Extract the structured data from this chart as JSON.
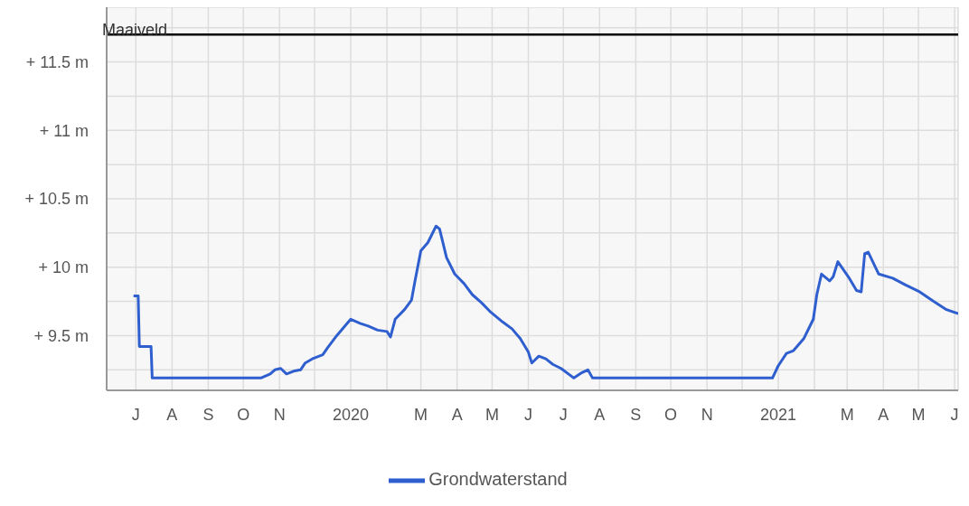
{
  "chart_data": {
    "type": "line",
    "x": [
      "2019-06-29",
      "2019-07-03",
      "2019-07-04",
      "2019-07-14",
      "2019-07-15",
      "2019-10-16",
      "2019-10-24",
      "2019-10-28",
      "2019-11-02",
      "2019-11-07",
      "2019-11-13",
      "2019-11-19",
      "2019-11-23",
      "2019-11-29",
      "2019-12-08",
      "2019-12-12",
      "2019-12-20",
      "2019-12-28",
      "2020-01-01",
      "2020-01-09",
      "2020-01-16",
      "2020-01-24",
      "2020-02-01",
      "2020-02-04",
      "2020-02-08",
      "2020-02-16",
      "2020-02-22",
      "2020-02-25",
      "2020-03-01",
      "2020-03-07",
      "2020-03-14",
      "2020-03-17",
      "2020-03-23",
      "2020-03-30",
      "2020-04-07",
      "2020-04-14",
      "2020-04-22",
      "2020-04-30",
      "2020-05-10",
      "2020-05-18",
      "2020-05-25",
      "2020-06-01",
      "2020-06-04",
      "2020-06-10",
      "2020-06-16",
      "2020-06-22",
      "2020-06-29",
      "2020-07-10",
      "2020-07-17",
      "2020-07-22",
      "2020-07-26",
      "2020-08-25",
      "2020-11-09",
      "2020-12-27",
      "2021-01-01",
      "2021-01-08",
      "2021-01-14",
      "2021-01-23",
      "2021-01-31",
      "2021-02-03",
      "2021-02-07",
      "2021-02-14",
      "2021-02-17",
      "2021-02-21",
      "2021-03-02",
      "2021-03-09",
      "2021-03-13",
      "2021-03-16",
      "2021-03-19",
      "2021-03-28",
      "2021-04-09",
      "2021-04-20",
      "2021-05-02",
      "2021-05-14",
      "2021-05-25",
      "2021-06-04"
    ],
    "series": [
      {
        "name": "Grondwaterstand",
        "color": "#2f5fcf",
        "values": [
          9.79,
          9.79,
          9.42,
          9.42,
          9.19,
          9.19,
          9.22,
          9.25,
          9.26,
          9.22,
          9.24,
          9.25,
          9.3,
          9.33,
          9.36,
          9.41,
          9.5,
          9.58,
          9.62,
          9.59,
          9.57,
          9.54,
          9.53,
          9.49,
          9.62,
          9.69,
          9.76,
          9.9,
          10.12,
          10.18,
          10.3,
          10.28,
          10.07,
          9.95,
          9.88,
          9.8,
          9.74,
          9.67,
          9.6,
          9.55,
          9.48,
          9.38,
          9.3,
          9.35,
          9.33,
          9.29,
          9.26,
          9.19,
          9.23,
          9.25,
          9.19,
          9.19,
          9.19,
          9.19,
          9.28,
          9.37,
          9.39,
          9.48,
          9.62,
          9.8,
          9.95,
          9.9,
          9.93,
          10.04,
          9.93,
          9.83,
          9.82,
          10.1,
          10.11,
          9.95,
          9.92,
          9.87,
          9.82,
          9.75,
          9.69,
          9.66
        ]
      }
    ],
    "xlim": [
      "2019-06-06",
      "2021-06-04"
    ],
    "xticks": [
      {
        "value": "2019-07",
        "label": "J"
      },
      {
        "value": "2019-08",
        "label": "A"
      },
      {
        "value": "2019-09",
        "label": "S"
      },
      {
        "value": "2019-10",
        "label": "O"
      },
      {
        "value": "2019-11",
        "label": "N"
      },
      {
        "value": "2019-12",
        "label": null
      },
      {
        "value": "2020-01",
        "label": "2020"
      },
      {
        "value": "2020-02",
        "label": null
      },
      {
        "value": "2020-03",
        "label": "M"
      },
      {
        "value": "2020-04",
        "label": "A"
      },
      {
        "value": "2020-05",
        "label": "M"
      },
      {
        "value": "2020-06",
        "label": "J"
      },
      {
        "value": "2020-07",
        "label": "J"
      },
      {
        "value": "2020-08",
        "label": "A"
      },
      {
        "value": "2020-09",
        "label": "S"
      },
      {
        "value": "2020-10",
        "label": "O"
      },
      {
        "value": "2020-11",
        "label": "N"
      },
      {
        "value": "2020-12",
        "label": null
      },
      {
        "value": "2021-01",
        "label": "2021"
      },
      {
        "value": "2021-02",
        "label": null
      },
      {
        "value": "2021-03",
        "label": "M"
      },
      {
        "value": "2021-04",
        "label": "A"
      },
      {
        "value": "2021-05",
        "label": "M"
      },
      {
        "value": "2021-06",
        "label": "J"
      }
    ],
    "ylim": [
      9.1,
      11.9
    ],
    "yticks": [
      {
        "value": 9.25,
        "label": null
      },
      {
        "value": 9.5,
        "label": "+ 9.5 m"
      },
      {
        "value": 9.75,
        "label": null
      },
      {
        "value": 10,
        "label": "+ 10 m"
      },
      {
        "value": 10.25,
        "label": null
      },
      {
        "value": 10.5,
        "label": "+ 10.5 m"
      },
      {
        "value": 10.75,
        "label": null
      },
      {
        "value": 11,
        "label": "+ 11 m"
      },
      {
        "value": 11.25,
        "label": null
      },
      {
        "value": 11.5,
        "label": "+ 11.5 m"
      },
      {
        "value": 11.75,
        "label": null
      }
    ],
    "ref_lines": [
      {
        "axis": "y",
        "value": 11.7,
        "label": "Maaiveld",
        "color": "#000000"
      }
    ],
    "grid": true,
    "legend": "bottom",
    "marker": "none",
    "line_style": "solid"
  }
}
